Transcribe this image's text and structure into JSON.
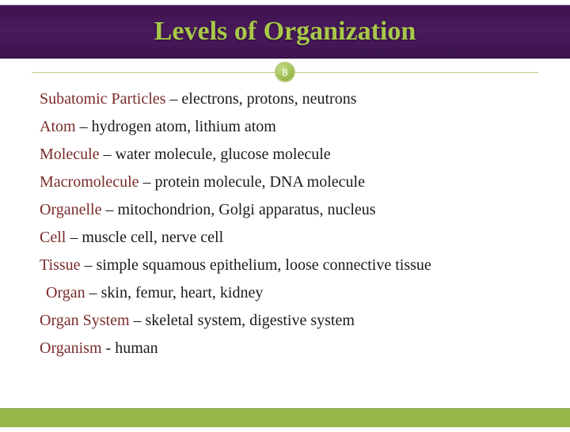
{
  "title": "Levels of Organization",
  "page_number": "8",
  "colors": {
    "header_bg": "#4a1a5c",
    "accent_green": "#98b84a",
    "title_color": "#a8c84a",
    "term_color": "#7a2a2a",
    "text_color": "#1a1a1a",
    "background": "#ffffff"
  },
  "typography": {
    "title_fontsize": 34,
    "body_fontsize": 20,
    "font_family": "Georgia"
  },
  "lines": [
    {
      "term": "Subatomic Particles",
      "sep": " – ",
      "rest": "electrons, protons, neutrons",
      "gap": false
    },
    {
      "term": "Atom",
      "sep": " – ",
      "rest": "hydrogen atom, lithium atom",
      "gap": false
    },
    {
      "term": "Molecule",
      "sep": " – ",
      "rest": "water molecule, glucose molecule",
      "gap": true
    },
    {
      "term": "Macromolecule",
      "sep": " – ",
      "rest": "protein molecule, DNA molecule",
      "gap": true
    },
    {
      "term": "Organelle",
      "sep": " – ",
      "rest": "mitochondrion, Golgi apparatus, nucleus",
      "gap": true
    },
    {
      "term": "Cell",
      "sep": " – ",
      "rest": "muscle cell, nerve cell",
      "gap": false
    },
    {
      "term": "Tissue",
      "sep": " – ",
      "rest": "simple squamous epithelium, loose connective tissue",
      "gap": false
    },
    {
      "term": "Organ",
      "sep": " – ",
      "rest": "skin, femur, heart, kidney",
      "gap": false,
      "indent": true
    },
    {
      "term": "Organ System",
      "sep": " – ",
      "rest": "skeletal system, digestive system",
      "gap": true
    },
    {
      "term": "Organism",
      "sep": " - ",
      "rest": "human",
      "gap": false
    }
  ]
}
